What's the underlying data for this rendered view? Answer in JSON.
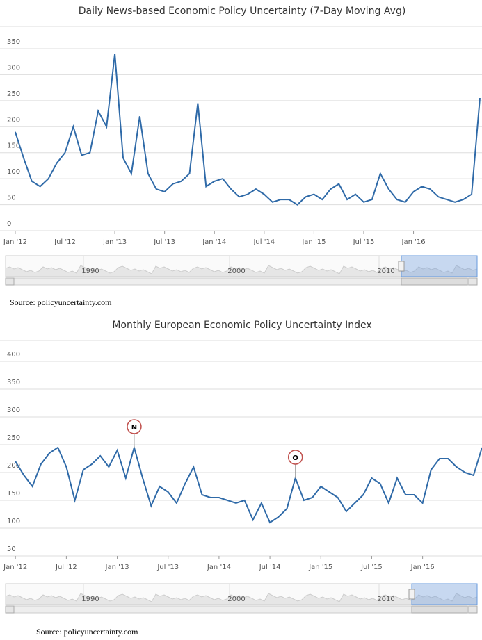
{
  "chart_data": [
    {
      "type": "line",
      "title": "Daily News-based Economic Policy Uncertainty (7-Day Moving Avg)",
      "source": "Source: policyuncertainty.com",
      "x": [
        "2012-01",
        "2012-02",
        "2012-03",
        "2012-04",
        "2012-05",
        "2012-06",
        "2012-07",
        "2012-08",
        "2012-09",
        "2012-10",
        "2012-11",
        "2012-12",
        "2013-01",
        "2013-02",
        "2013-03",
        "2013-04",
        "2013-05",
        "2013-06",
        "2013-07",
        "2013-08",
        "2013-09",
        "2013-10",
        "2013-11",
        "2013-12",
        "2014-01",
        "2014-02",
        "2014-03",
        "2014-04",
        "2014-05",
        "2014-06",
        "2014-07",
        "2014-08",
        "2014-09",
        "2014-10",
        "2014-11",
        "2014-12",
        "2015-01",
        "2015-02",
        "2015-03",
        "2015-04",
        "2015-05",
        "2015-06",
        "2015-07",
        "2015-08",
        "2015-09",
        "2015-10",
        "2015-11",
        "2015-12",
        "2016-01",
        "2016-02",
        "2016-03",
        "2016-04",
        "2016-05",
        "2016-06",
        "2016-07",
        "2016-08",
        "2016-09"
      ],
      "series": [
        {
          "color": "#2f6aa8",
          "values": [
            190,
            140,
            95,
            85,
            100,
            130,
            150,
            200,
            145,
            150,
            230,
            200,
            340,
            140,
            110,
            220,
            110,
            80,
            75,
            90,
            95,
            110,
            245,
            85,
            95,
            100,
            80,
            65,
            70,
            80,
            70,
            55,
            60,
            60,
            50,
            65,
            70,
            60,
            80,
            90,
            60,
            70,
            55,
            60,
            110,
            80,
            60,
            55,
            75,
            85,
            80,
            65,
            60,
            55,
            60,
            70,
            255
          ]
        }
      ],
      "xlim": [
        "2011-12",
        "2016-09"
      ],
      "xticks": [
        {
          "value": "2012-01",
          "label": "Jan '12"
        },
        {
          "value": "2012-07",
          "label": "Jul '12"
        },
        {
          "value": "2013-01",
          "label": "Jan '13"
        },
        {
          "value": "2013-07",
          "label": "Jul '13"
        },
        {
          "value": "2014-01",
          "label": "Jan '14"
        },
        {
          "value": "2014-07",
          "label": "Jul '14"
        },
        {
          "value": "2015-01",
          "label": "Jan '15"
        },
        {
          "value": "2015-07",
          "label": "Jul '15"
        },
        {
          "value": "2016-01",
          "label": "Jan '16"
        }
      ],
      "ylim": [
        0,
        350
      ],
      "yticks": [
        0,
        50,
        100,
        150,
        200,
        250,
        300,
        350
      ],
      "grid": true,
      "navigator_ticks": [
        1990,
        2000,
        2010
      ],
      "annotations": []
    },
    {
      "type": "line",
      "title": "Monthly European Economic Policy Uncertainty Index",
      "source": "Source: policyuncertainty.com",
      "x": [
        "2012-01",
        "2012-02",
        "2012-03",
        "2012-04",
        "2012-05",
        "2012-06",
        "2012-07",
        "2012-08",
        "2012-09",
        "2012-10",
        "2012-11",
        "2012-12",
        "2013-01",
        "2013-02",
        "2013-03",
        "2013-04",
        "2013-05",
        "2013-06",
        "2013-07",
        "2013-08",
        "2013-09",
        "2013-10",
        "2013-11",
        "2013-12",
        "2014-01",
        "2014-02",
        "2014-03",
        "2014-04",
        "2014-05",
        "2014-06",
        "2014-07",
        "2014-08",
        "2014-09",
        "2014-10",
        "2014-11",
        "2014-12",
        "2015-01",
        "2015-02",
        "2015-03",
        "2015-04",
        "2015-05",
        "2015-06",
        "2015-07",
        "2015-08",
        "2015-09",
        "2015-10",
        "2015-11",
        "2015-12",
        "2016-01",
        "2016-02",
        "2016-03",
        "2016-04",
        "2016-05",
        "2016-06",
        "2016-07",
        "2016-08"
      ],
      "series": [
        {
          "color": "#2f6aa8",
          "values": [
            220,
            195,
            175,
            215,
            235,
            245,
            210,
            150,
            205,
            215,
            230,
            210,
            240,
            190,
            245,
            190,
            140,
            175,
            165,
            145,
            180,
            210,
            160,
            155,
            155,
            150,
            145,
            150,
            115,
            145,
            110,
            120,
            135,
            190,
            150,
            155,
            175,
            165,
            155,
            130,
            145,
            160,
            190,
            180,
            145,
            190,
            160,
            160,
            145,
            205,
            225,
            225,
            210,
            200,
            195,
            245
          ]
        }
      ],
      "xlim": [
        "2011-12",
        "2016-08"
      ],
      "xticks": [
        {
          "value": "2012-01",
          "label": "Jan '12"
        },
        {
          "value": "2012-07",
          "label": "Jul '12"
        },
        {
          "value": "2013-01",
          "label": "Jan '13"
        },
        {
          "value": "2013-07",
          "label": "Jul '13"
        },
        {
          "value": "2014-01",
          "label": "Jan '14"
        },
        {
          "value": "2014-07",
          "label": "Jul '14"
        },
        {
          "value": "2015-01",
          "label": "Jan '15"
        },
        {
          "value": "2015-07",
          "label": "Jul '15"
        },
        {
          "value": "2016-01",
          "label": "Jan '16"
        }
      ],
      "ylim": [
        50,
        400
      ],
      "yticks": [
        50,
        100,
        150,
        200,
        250,
        300,
        350,
        400
      ],
      "grid": true,
      "navigator_ticks": [
        1990,
        2000,
        2010
      ],
      "annotations": [
        {
          "text": "N",
          "x": "2013-03"
        },
        {
          "text": "O",
          "x": "2014-10"
        }
      ]
    }
  ]
}
